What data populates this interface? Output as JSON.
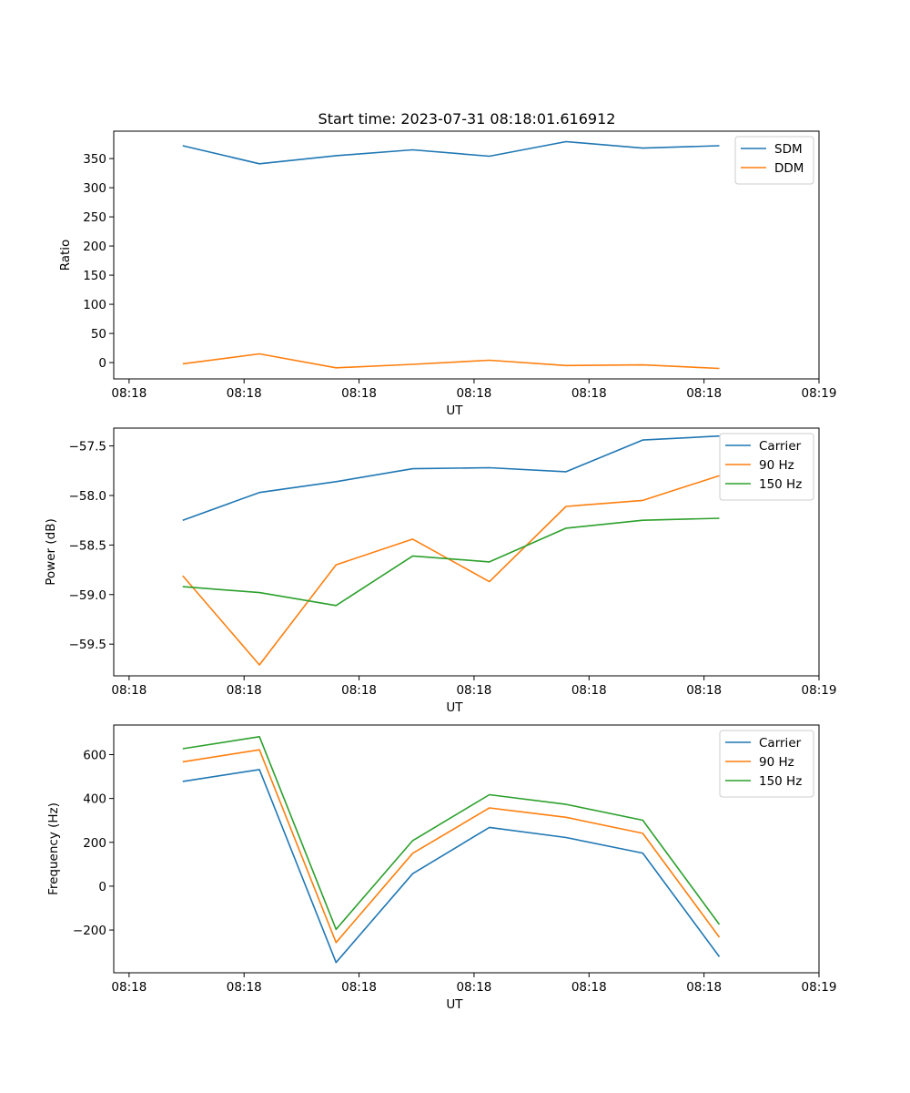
{
  "figure_title": "Start time: 2023-07-31 08:18:01.616912",
  "chart_data": [
    {
      "type": "line",
      "name": "ratio-chart",
      "title": "Start time: 2023-07-31 08:18:01.616912",
      "xlabel": "UT",
      "ylabel": "Ratio",
      "x": [
        0.9,
        1.9,
        2.9,
        3.9,
        4.9,
        5.9,
        6.9,
        7.9
      ],
      "xlim": [
        0,
        9.2
      ],
      "xticks": [
        0.2,
        1.7,
        3.2,
        4.7,
        6.2,
        7.7,
        9.2
      ],
      "xtick_labels": [
        "08:18",
        "08:18",
        "08:18",
        "08:18",
        "08:18",
        "08:18",
        "08:19"
      ],
      "ylim": [
        -28,
        397
      ],
      "yticks": [
        0,
        50,
        100,
        150,
        200,
        250,
        300,
        350
      ],
      "ytick_labels": [
        "0",
        "50",
        "100",
        "150",
        "200",
        "250",
        "300",
        "350"
      ],
      "legend_position": "top-right",
      "series": [
        {
          "name": "SDM",
          "color": "#1f77b4",
          "values": [
            372,
            341,
            355,
            365,
            354,
            379,
            368,
            372
          ]
        },
        {
          "name": "DDM",
          "color": "#ff7f0e",
          "values": [
            -2,
            15,
            -9,
            -3,
            4,
            -5,
            -4,
            -10
          ]
        }
      ]
    },
    {
      "type": "line",
      "name": "power-chart",
      "xlabel": "UT",
      "ylabel": "Power (dB)",
      "x": [
        0.9,
        1.9,
        2.9,
        3.9,
        4.9,
        5.9,
        6.9,
        7.9
      ],
      "xlim": [
        0,
        9.2
      ],
      "xticks": [
        0.2,
        1.7,
        3.2,
        4.7,
        6.2,
        7.7,
        9.2
      ],
      "xtick_labels": [
        "08:18",
        "08:18",
        "08:18",
        "08:18",
        "08:18",
        "08:18",
        "08:19"
      ],
      "ylim": [
        -59.82,
        -57.32
      ],
      "yticks": [
        -59.5,
        -59.0,
        -58.5,
        -58.0,
        -57.5
      ],
      "ytick_labels": [
        "−59.5",
        "−59.0",
        "−58.5",
        "−58.0",
        "−57.5"
      ],
      "legend_position": "top-right",
      "series": [
        {
          "name": "Carrier",
          "color": "#1f77b4",
          "values": [
            -58.25,
            -57.97,
            -57.86,
            -57.73,
            -57.72,
            -57.76,
            -57.44,
            -57.4
          ]
        },
        {
          "name": "90 Hz",
          "color": "#ff7f0e",
          "values": [
            -58.81,
            -59.71,
            -58.7,
            -58.44,
            -58.87,
            -58.11,
            -58.05,
            -57.8
          ]
        },
        {
          "name": "150 Hz",
          "color": "#2ca02c",
          "values": [
            -58.92,
            -58.98,
            -59.11,
            -58.61,
            -58.67,
            -58.33,
            -58.25,
            -58.23
          ]
        }
      ]
    },
    {
      "type": "line",
      "name": "frequency-chart",
      "xlabel": "UT",
      "ylabel": "Frequency (Hz)",
      "x": [
        0.9,
        1.9,
        2.9,
        3.9,
        4.9,
        5.9,
        6.9,
        7.9
      ],
      "xlim": [
        0,
        9.2
      ],
      "xticks": [
        0.2,
        1.7,
        3.2,
        4.7,
        6.2,
        7.7,
        9.2
      ],
      "xtick_labels": [
        "08:18",
        "08:18",
        "08:18",
        "08:18",
        "08:18",
        "08:18",
        "08:19"
      ],
      "ylim": [
        -395,
        735
      ],
      "yticks": [
        -200,
        0,
        200,
        400,
        600
      ],
      "ytick_labels": [
        "−200",
        "0",
        "200",
        "400",
        "600"
      ],
      "legend_position": "top-right",
      "series": [
        {
          "name": "Carrier",
          "color": "#1f77b4",
          "values": [
            478,
            532,
            -348,
            57,
            268,
            222,
            151,
            -322
          ]
        },
        {
          "name": "90 Hz",
          "color": "#ff7f0e",
          "values": [
            567,
            622,
            -257,
            150,
            357,
            314,
            241,
            -233
          ]
        },
        {
          "name": "150 Hz",
          "color": "#2ca02c",
          "values": [
            627,
            682,
            -197,
            208,
            417,
            373,
            301,
            -175
          ]
        }
      ]
    }
  ]
}
